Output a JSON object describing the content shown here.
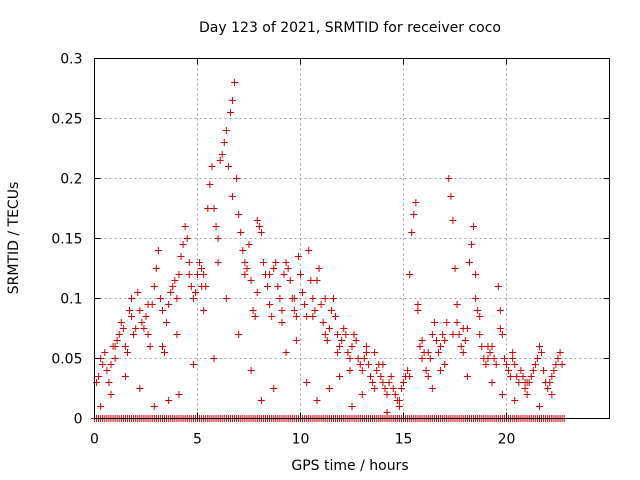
{
  "chart_data": {
    "type": "scatter",
    "title": "Day 123 of 2021, SRMTID for receiver coco",
    "xlabel": "GPS time / hours",
    "ylabel": "SRMTID / TECUs",
    "xlim": [
      0,
      25
    ],
    "ylim": [
      0,
      0.3
    ],
    "xticks": [
      0,
      5,
      10,
      15,
      20
    ],
    "xtick_labels": [
      "0",
      "5",
      "10",
      "15",
      "20"
    ],
    "yticks": [
      0,
      0.05,
      0.1,
      0.15,
      0.2,
      0.25,
      0.3
    ],
    "ytick_labels": [
      "0",
      "0.05",
      "0.1",
      "0.15",
      "0.2",
      "0.25",
      "0.3"
    ],
    "grid": true,
    "marker": "+",
    "color": "#cc0000",
    "zero_line": {
      "x_start": 0,
      "x_end": 22.8,
      "step": 0.1,
      "y": 0
    },
    "series": [
      {
        "name": "SRMTID",
        "points": [
          [
            0.1,
            0.03
          ],
          [
            0.2,
            0.035
          ],
          [
            0.3,
            0.05
          ],
          [
            0.4,
            0.045
          ],
          [
            0.5,
            0.055
          ],
          [
            0.6,
            0.04
          ],
          [
            0.7,
            0.03
          ],
          [
            0.8,
            0.045
          ],
          [
            0.9,
            0.06
          ],
          [
            1.0,
            0.05
          ],
          [
            1.1,
            0.065
          ],
          [
            1.2,
            0.07
          ],
          [
            1.3,
            0.08
          ],
          [
            1.4,
            0.075
          ],
          [
            1.5,
            0.06
          ],
          [
            1.6,
            0.055
          ],
          [
            1.7,
            0.09
          ],
          [
            1.8,
            0.085
          ],
          [
            1.9,
            0.07
          ],
          [
            2.0,
            0.075
          ],
          [
            2.1,
            0.105
          ],
          [
            2.2,
            0.09
          ],
          [
            2.3,
            0.08
          ],
          [
            2.4,
            0.075
          ],
          [
            2.5,
            0.085
          ],
          [
            2.6,
            0.07
          ],
          [
            2.7,
            0.06
          ],
          [
            2.8,
            0.095
          ],
          [
            2.9,
            0.11
          ],
          [
            3.0,
            0.125
          ],
          [
            3.1,
            0.14
          ],
          [
            3.2,
            0.1
          ],
          [
            3.3,
            0.06
          ],
          [
            3.4,
            0.055
          ],
          [
            3.5,
            0.08
          ],
          [
            3.6,
            0.095
          ],
          [
            3.7,
            0.105
          ],
          [
            3.8,
            0.11
          ],
          [
            3.9,
            0.115
          ],
          [
            4.0,
            0.1
          ],
          [
            4.1,
            0.12
          ],
          [
            4.2,
            0.135
          ],
          [
            4.3,
            0.145
          ],
          [
            4.4,
            0.16
          ],
          [
            4.5,
            0.15
          ],
          [
            4.6,
            0.13
          ],
          [
            4.7,
            0.11
          ],
          [
            4.8,
            0.1
          ],
          [
            4.9,
            0.105
          ],
          [
            5.0,
            0.12
          ],
          [
            5.1,
            0.13
          ],
          [
            5.2,
            0.125
          ],
          [
            5.3,
            0.12
          ],
          [
            5.4,
            0.11
          ],
          [
            5.5,
            0.175
          ],
          [
            5.6,
            0.195
          ],
          [
            5.7,
            0.21
          ],
          [
            5.8,
            0.175
          ],
          [
            5.9,
            0.16
          ],
          [
            6.0,
            0.15
          ],
          [
            6.1,
            0.215
          ],
          [
            6.2,
            0.22
          ],
          [
            6.3,
            0.23
          ],
          [
            6.4,
            0.24
          ],
          [
            6.5,
            0.21
          ],
          [
            6.6,
            0.255
          ],
          [
            6.7,
            0.265
          ],
          [
            6.8,
            0.28
          ],
          [
            6.9,
            0.2
          ],
          [
            7.0,
            0.17
          ],
          [
            7.1,
            0.155
          ],
          [
            7.2,
            0.14
          ],
          [
            7.3,
            0.13
          ],
          [
            7.4,
            0.125
          ],
          [
            7.5,
            0.145
          ],
          [
            7.6,
            0.115
          ],
          [
            7.7,
            0.09
          ],
          [
            7.8,
            0.085
          ],
          [
            7.9,
            0.165
          ],
          [
            8.0,
            0.16
          ],
          [
            8.1,
            0.155
          ],
          [
            8.2,
            0.13
          ],
          [
            8.3,
            0.12
          ],
          [
            8.4,
            0.11
          ],
          [
            8.5,
            0.095
          ],
          [
            8.6,
            0.085
          ],
          [
            8.7,
            0.125
          ],
          [
            8.8,
            0.13
          ],
          [
            8.9,
            0.11
          ],
          [
            9.0,
            0.1
          ],
          [
            9.1,
            0.09
          ],
          [
            9.2,
            0.12
          ],
          [
            9.3,
            0.13
          ],
          [
            9.4,
            0.125
          ],
          [
            9.5,
            0.115
          ],
          [
            9.6,
            0.1
          ],
          [
            9.7,
            0.09
          ],
          [
            9.8,
            0.085
          ],
          [
            9.9,
            0.135
          ],
          [
            10.0,
            0.12
          ],
          [
            10.1,
            0.105
          ],
          [
            10.2,
            0.095
          ],
          [
            10.3,
            0.085
          ],
          [
            10.4,
            0.14
          ],
          [
            10.5,
            0.115
          ],
          [
            10.6,
            0.1
          ],
          [
            10.7,
            0.09
          ],
          [
            10.8,
            0.115
          ],
          [
            10.9,
            0.125
          ],
          [
            11.0,
            0.095
          ],
          [
            11.1,
            0.08
          ],
          [
            11.2,
            0.07
          ],
          [
            11.3,
            0.065
          ],
          [
            11.4,
            0.075
          ],
          [
            11.5,
            0.09
          ],
          [
            11.6,
            0.1
          ],
          [
            11.7,
            0.085
          ],
          [
            11.8,
            0.07
          ],
          [
            11.9,
            0.06
          ],
          [
            12.0,
            0.065
          ],
          [
            12.1,
            0.075
          ],
          [
            12.2,
            0.07
          ],
          [
            12.3,
            0.055
          ],
          [
            12.4,
            0.05
          ],
          [
            12.5,
            0.06
          ],
          [
            12.6,
            0.07
          ],
          [
            12.7,
            0.065
          ],
          [
            12.8,
            0.05
          ],
          [
            12.9,
            0.045
          ],
          [
            13.0,
            0.04
          ],
          [
            13.1,
            0.05
          ],
          [
            13.2,
            0.055
          ],
          [
            13.3,
            0.045
          ],
          [
            13.4,
            0.035
          ],
          [
            13.5,
            0.03
          ],
          [
            13.6,
            0.025
          ],
          [
            13.7,
            0.04
          ],
          [
            13.8,
            0.045
          ],
          [
            13.9,
            0.035
          ],
          [
            14.0,
            0.03
          ],
          [
            14.1,
            0.025
          ],
          [
            14.2,
            0.02
          ],
          [
            14.3,
            0.03
          ],
          [
            14.4,
            0.035
          ],
          [
            14.5,
            0.025
          ],
          [
            14.6,
            0.02
          ],
          [
            14.7,
            0.015
          ],
          [
            14.8,
            0.01
          ],
          [
            14.9,
            0.025
          ],
          [
            15.0,
            0.03
          ],
          [
            15.1,
            0.035
          ],
          [
            15.2,
            0.04
          ],
          [
            15.3,
            0.035
          ],
          [
            15.4,
            0.155
          ],
          [
            15.5,
            0.17
          ],
          [
            15.6,
            0.18
          ],
          [
            15.7,
            0.09
          ],
          [
            15.8,
            0.06
          ],
          [
            15.9,
            0.05
          ],
          [
            16.0,
            0.055
          ],
          [
            16.1,
            0.04
          ],
          [
            16.2,
            0.035
          ],
          [
            16.3,
            0.05
          ],
          [
            16.4,
            0.07
          ],
          [
            16.5,
            0.08
          ],
          [
            16.6,
            0.065
          ],
          [
            16.7,
            0.055
          ],
          [
            16.8,
            0.06
          ],
          [
            16.9,
            0.07
          ],
          [
            17.0,
            0.065
          ],
          [
            17.1,
            0.08
          ],
          [
            17.2,
            0.2
          ],
          [
            17.3,
            0.185
          ],
          [
            17.4,
            0.165
          ],
          [
            17.5,
            0.125
          ],
          [
            17.6,
            0.08
          ],
          [
            17.7,
            0.07
          ],
          [
            17.8,
            0.06
          ],
          [
            17.9,
            0.055
          ],
          [
            18.0,
            0.065
          ],
          [
            18.1,
            0.075
          ],
          [
            18.2,
            0.13
          ],
          [
            18.3,
            0.145
          ],
          [
            18.4,
            0.16
          ],
          [
            18.5,
            0.12
          ],
          [
            18.6,
            0.09
          ],
          [
            18.7,
            0.07
          ],
          [
            18.8,
            0.06
          ],
          [
            18.9,
            0.05
          ],
          [
            19.0,
            0.045
          ],
          [
            19.1,
            0.05
          ],
          [
            19.2,
            0.055
          ],
          [
            19.3,
            0.06
          ],
          [
            19.4,
            0.05
          ],
          [
            19.5,
            0.045
          ],
          [
            19.6,
            0.11
          ],
          [
            19.7,
            0.09
          ],
          [
            19.8,
            0.07
          ],
          [
            19.9,
            0.05
          ],
          [
            20.0,
            0.045
          ],
          [
            20.1,
            0.04
          ],
          [
            20.2,
            0.035
          ],
          [
            20.3,
            0.05
          ],
          [
            20.4,
            0.045
          ],
          [
            20.5,
            0.035
          ],
          [
            20.6,
            0.03
          ],
          [
            20.7,
            0.04
          ],
          [
            20.8,
            0.035
          ],
          [
            20.9,
            0.025
          ],
          [
            21.0,
            0.02
          ],
          [
            21.1,
            0.03
          ],
          [
            21.2,
            0.035
          ],
          [
            21.3,
            0.04
          ],
          [
            21.4,
            0.045
          ],
          [
            21.5,
            0.05
          ],
          [
            21.6,
            0.06
          ],
          [
            21.7,
            0.055
          ],
          [
            21.8,
            0.04
          ],
          [
            21.9,
            0.03
          ],
          [
            22.0,
            0.025
          ],
          [
            22.1,
            0.03
          ],
          [
            22.2,
            0.035
          ],
          [
            22.3,
            0.04
          ],
          [
            22.4,
            0.045
          ],
          [
            22.5,
            0.05
          ],
          [
            22.6,
            0.055
          ],
          [
            22.7,
            0.045
          ],
          [
            0.3,
            0.01
          ],
          [
            0.8,
            0.02
          ],
          [
            1.5,
            0.035
          ],
          [
            2.2,
            0.025
          ],
          [
            2.9,
            0.01
          ],
          [
            3.6,
            0.015
          ],
          [
            4.1,
            0.02
          ],
          [
            4.8,
            0.045
          ],
          [
            5.3,
            0.09
          ],
          [
            5.8,
            0.05
          ],
          [
            6.4,
            0.1
          ],
          [
            7.0,
            0.07
          ],
          [
            7.6,
            0.04
          ],
          [
            8.1,
            0.015
          ],
          [
            8.7,
            0.025
          ],
          [
            9.3,
            0.055
          ],
          [
            9.8,
            0.065
          ],
          [
            10.3,
            0.03
          ],
          [
            10.8,
            0.015
          ],
          [
            11.4,
            0.025
          ],
          [
            11.9,
            0.035
          ],
          [
            12.5,
            0.01
          ],
          [
            13.0,
            0.02
          ],
          [
            13.6,
            0.055
          ],
          [
            14.2,
            0.005
          ],
          [
            14.8,
            0.015
          ],
          [
            15.3,
            0.12
          ],
          [
            15.9,
            0.065
          ],
          [
            16.4,
            0.025
          ],
          [
            17.0,
            0.045
          ],
          [
            17.6,
            0.095
          ],
          [
            18.1,
            0.035
          ],
          [
            18.7,
            0.085
          ],
          [
            19.3,
            0.03
          ],
          [
            19.8,
            0.02
          ],
          [
            20.4,
            0.015
          ],
          [
            21.0,
            0.03
          ],
          [
            21.6,
            0.01
          ],
          [
            22.2,
            0.02
          ],
          [
            1.0,
            0.06
          ],
          [
            1.8,
            0.1
          ],
          [
            2.6,
            0.095
          ],
          [
            3.3,
            0.09
          ],
          [
            4.0,
            0.07
          ],
          [
            4.6,
            0.12
          ],
          [
            5.2,
            0.11
          ],
          [
            6.0,
            0.13
          ],
          [
            6.7,
            0.185
          ],
          [
            7.3,
            0.12
          ],
          [
            7.9,
            0.105
          ],
          [
            8.5,
            0.12
          ],
          [
            9.1,
            0.08
          ],
          [
            9.7,
            0.1
          ],
          [
            10.6,
            0.085
          ],
          [
            11.2,
            0.1
          ],
          [
            11.8,
            0.055
          ],
          [
            12.4,
            0.04
          ],
          [
            13.2,
            0.06
          ],
          [
            14.0,
            0.045
          ],
          [
            15.7,
            0.095
          ],
          [
            16.2,
            0.055
          ],
          [
            16.8,
            0.04
          ],
          [
            17.4,
            0.07
          ],
          [
            17.9,
            0.075
          ],
          [
            18.5,
            0.1
          ],
          [
            19.1,
            0.06
          ],
          [
            19.7,
            0.075
          ],
          [
            20.3,
            0.055
          ],
          [
            20.9,
            0.03
          ]
        ]
      }
    ]
  }
}
